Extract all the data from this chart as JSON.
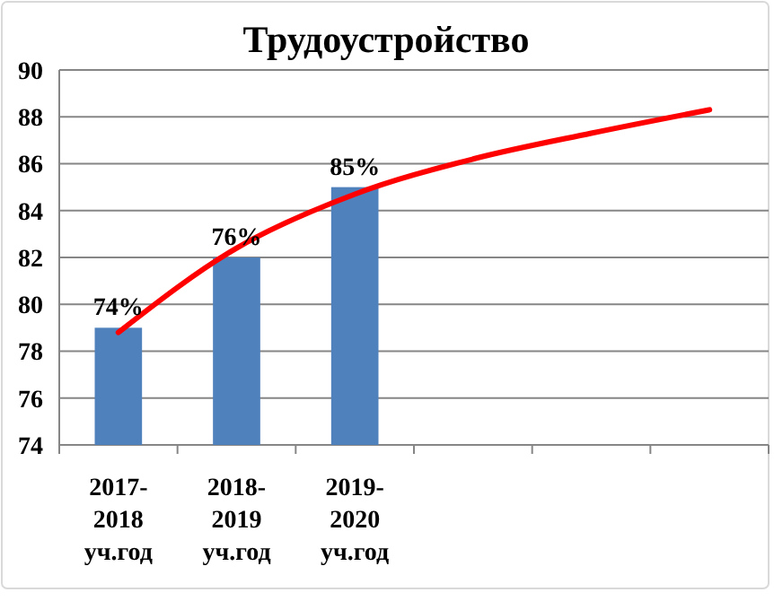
{
  "chart_data": {
    "type": "bar",
    "title": "Трудоустройство",
    "categories": [
      "2017-2018 уч.год",
      "2018-2019 уч.год",
      "2019-2020 уч.год",
      null,
      null,
      null
    ],
    "series": [
      {
        "color": "#4f81bd",
        "values": [
          79,
          82,
          85,
          null,
          null,
          null
        ]
      },
      {
        "type": "line",
        "color": "#ff0000",
        "values": [
          78.8,
          82.4,
          84.7,
          86.2,
          87.3,
          88.3
        ]
      }
    ],
    "annotations": [
      {
        "text": "74%",
        "x": "2017-2018 уч.год",
        "y": 79
      },
      {
        "text": "76%",
        "x": "2018-2019 уч.год",
        "y": 82
      },
      {
        "text": "85%",
        "x": "2019-2020 уч.год",
        "y": 85
      }
    ],
    "ylim": [
      74,
      90
    ],
    "yticks": [
      74,
      76,
      78,
      80,
      82,
      84,
      86,
      88,
      90
    ],
    "grid": "y"
  }
}
